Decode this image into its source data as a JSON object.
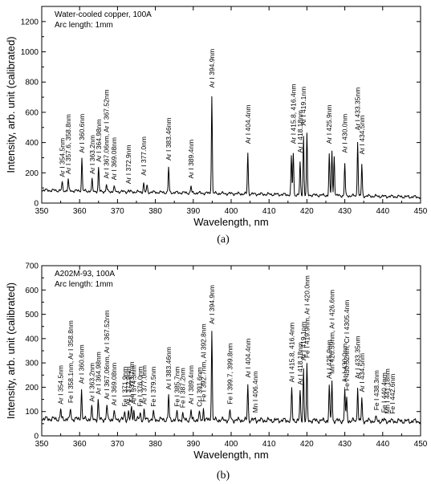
{
  "charts": [
    {
      "type": "line",
      "caption": "(a)",
      "annotation_lines": [
        "Water-cooled copper, 100A",
        "Arc length: 1mm"
      ],
      "xlabel": "Wavelength, nm",
      "ylabel": "Intensity, arb. unit (calibrated)",
      "xlim": [
        350,
        450
      ],
      "ylim": [
        0,
        1300
      ],
      "xticks": [
        350,
        360,
        370,
        380,
        390,
        400,
        410,
        420,
        430,
        440,
        450
      ],
      "yticks": [
        0,
        200,
        400,
        600,
        800,
        1000,
        1200
      ],
      "baseline": 85,
      "baseline_end": 40,
      "peaks": [
        {
          "x": 355.4,
          "y": 140,
          "label": "Ar I 354.5nm"
        },
        {
          "x": 357.0,
          "y": 160,
          "label": "Ar I 357.6, 358.8nm"
        },
        {
          "x": 360.6,
          "y": 300,
          "label": "Ar I 360.6nm"
        },
        {
          "x": 363.3,
          "y": 160,
          "label": "Ar I 363.2nm"
        },
        {
          "x": 365.0,
          "y": 240,
          "label": "Ar I 364.98nm"
        },
        {
          "x": 367.1,
          "y": 130,
          "label": "Ar I 367.06nm, Ar I 367.52nm"
        },
        {
          "x": 369.1,
          "y": 120,
          "label": "Ar I 369.08nm"
        },
        {
          "x": 372.9,
          "y": 95,
          "label": "Ar I 372.9nm"
        },
        {
          "x": 376.9,
          "y": 150,
          "label": "Ar I 377.0nm"
        },
        {
          "x": 377.8,
          "y": 130,
          "label": ""
        },
        {
          "x": 383.5,
          "y": 250,
          "label": "Ar I 383.46nm"
        },
        {
          "x": 389.4,
          "y": 130,
          "label": "Ar I 389.4nm"
        },
        {
          "x": 394.9,
          "y": 730,
          "label": "Ar I 394.9nm"
        },
        {
          "x": 404.4,
          "y": 360,
          "label": "Ar I 404.4nm"
        },
        {
          "x": 415.9,
          "y": 340,
          "label": ""
        },
        {
          "x": 416.4,
          "y": 360,
          "label": "Ar I 415.8, 416.4nm"
        },
        {
          "x": 418.2,
          "y": 300,
          "label": "Ar I 418.18nm"
        },
        {
          "x": 419.1,
          "y": 480,
          "label": "Ar I 419.1nm"
        },
        {
          "x": 420.0,
          "y": 490,
          "label": ""
        },
        {
          "x": 425.9,
          "y": 360,
          "label": "Ar I 425.9nm"
        },
        {
          "x": 426.6,
          "y": 380,
          "label": ""
        },
        {
          "x": 427.2,
          "y": 350,
          "label": ""
        },
        {
          "x": 430.0,
          "y": 300,
          "label": "Ar I 430.0nm"
        },
        {
          "x": 433.4,
          "y": 450,
          "label": "Ar I 433.35nm"
        },
        {
          "x": 434.5,
          "y": 290,
          "label": "Ar I 434.5nm"
        }
      ]
    },
    {
      "type": "line",
      "caption": "(b)",
      "annotation_lines": [
        "A202M-93, 100A",
        "Arc length: 1mm"
      ],
      "xlabel": "Wavelength, nm",
      "ylabel": "Intensity, arb. unit (calibrated)",
      "xlim": [
        350,
        450
      ],
      "ylim": [
        0,
        700
      ],
      "xticks": [
        350,
        360,
        370,
        380,
        390,
        400,
        410,
        420,
        430,
        440,
        450
      ],
      "yticks": [
        0,
        100,
        200,
        300,
        400,
        500,
        600,
        700
      ],
      "baseline": 70,
      "baseline_end": 60,
      "peaks": [
        {
          "x": 355.0,
          "y": 110,
          "label": "Ar I 354.5nm"
        },
        {
          "x": 357.6,
          "y": 115,
          "label": "Fe I 358.1nm, Ar I 358.8nm"
        },
        {
          "x": 360.5,
          "y": 195,
          "label": "Ar I 360.6nm"
        },
        {
          "x": 363.2,
          "y": 120,
          "label": "Ar I 363.2nm"
        },
        {
          "x": 364.9,
          "y": 150,
          "label": "Ar I 364.98nm"
        },
        {
          "x": 367.2,
          "y": 130,
          "label": "Ar I 367.06nm, Ar I 367.52nm"
        },
        {
          "x": 369.1,
          "y": 105,
          "label": "Ar I 369.08nm"
        },
        {
          "x": 371.9,
          "y": 100,
          "label": "Fe I 371.9nm"
        },
        {
          "x": 372.9,
          "y": 105,
          "label": "Ar I 372.9nm"
        },
        {
          "x": 373.7,
          "y": 120,
          "label": "Fe I 373.7nm"
        },
        {
          "x": 374.3,
          "y": 110,
          "label": "Ar I 374.3nm"
        },
        {
          "x": 376.0,
          "y": 100,
          "label": "Fe I 376.0nm"
        },
        {
          "x": 377.0,
          "y": 110,
          "label": "Ar I 377.0nm"
        },
        {
          "x": 379.5,
          "y": 100,
          "label": "Fe I 379.5nm"
        },
        {
          "x": 383.5,
          "y": 170,
          "label": "Ar I 383.46nm"
        },
        {
          "x": 385.7,
          "y": 100,
          "label": "Fe I 385.7nm"
        },
        {
          "x": 387.2,
          "y": 95,
          "label": "Fe I 387.2nm"
        },
        {
          "x": 389.4,
          "y": 110,
          "label": "Ar I 389.4nm"
        },
        {
          "x": 391.6,
          "y": 100,
          "label": "Cr I 391.6nm"
        },
        {
          "x": 392.7,
          "y": 120,
          "label": "Fe I 392.7nm, Al 392.8nm"
        },
        {
          "x": 394.9,
          "y": 440,
          "label": "Ar I 394.9nm"
        },
        {
          "x": 399.7,
          "y": 110,
          "label": "Fe I 399.7, 399.8nm"
        },
        {
          "x": 404.4,
          "y": 220,
          "label": "Ar I 404.4nm"
        },
        {
          "x": 406.4,
          "y": 75,
          "label": "Mn I 406.4nm"
        },
        {
          "x": 416.0,
          "y": 200,
          "label": "Ar I 415.8, 416.4nm"
        },
        {
          "x": 418.2,
          "y": 190,
          "label": "Ar I 418.18nm"
        },
        {
          "x": 419.1,
          "y": 290,
          "label": "Ar I 419.1nm"
        },
        {
          "x": 420.0,
          "y": 300,
          "label": "Fe I 419.9nm, Ar I 420.0nm"
        },
        {
          "x": 425.9,
          "y": 215,
          "label": "Ar I 425.9nm"
        },
        {
          "x": 426.6,
          "y": 235,
          "label": "Mn 426.59nm, Ar I 426.6nm"
        },
        {
          "x": 430.0,
          "y": 200,
          "label": "Ar I 430.0nm"
        },
        {
          "x": 430.5,
          "y": 165,
          "label": "Fe I 430.52nm, Cr I 4305.4nm"
        },
        {
          "x": 433.4,
          "y": 215,
          "label": "Ar I 433.35nm"
        },
        {
          "x": 434.5,
          "y": 160,
          "label": "Ar I 434.5nm"
        },
        {
          "x": 438.3,
          "y": 85,
          "label": "Fe I 438.3nm"
        },
        {
          "x": 440.4,
          "y": 75,
          "label": "Fe I 440.4nm"
        },
        {
          "x": 441.2,
          "y": 70,
          "label": "Mn I 441.18nm"
        },
        {
          "x": 442.6,
          "y": 70,
          "label": "Fe I 442.6nm"
        }
      ]
    }
  ]
}
